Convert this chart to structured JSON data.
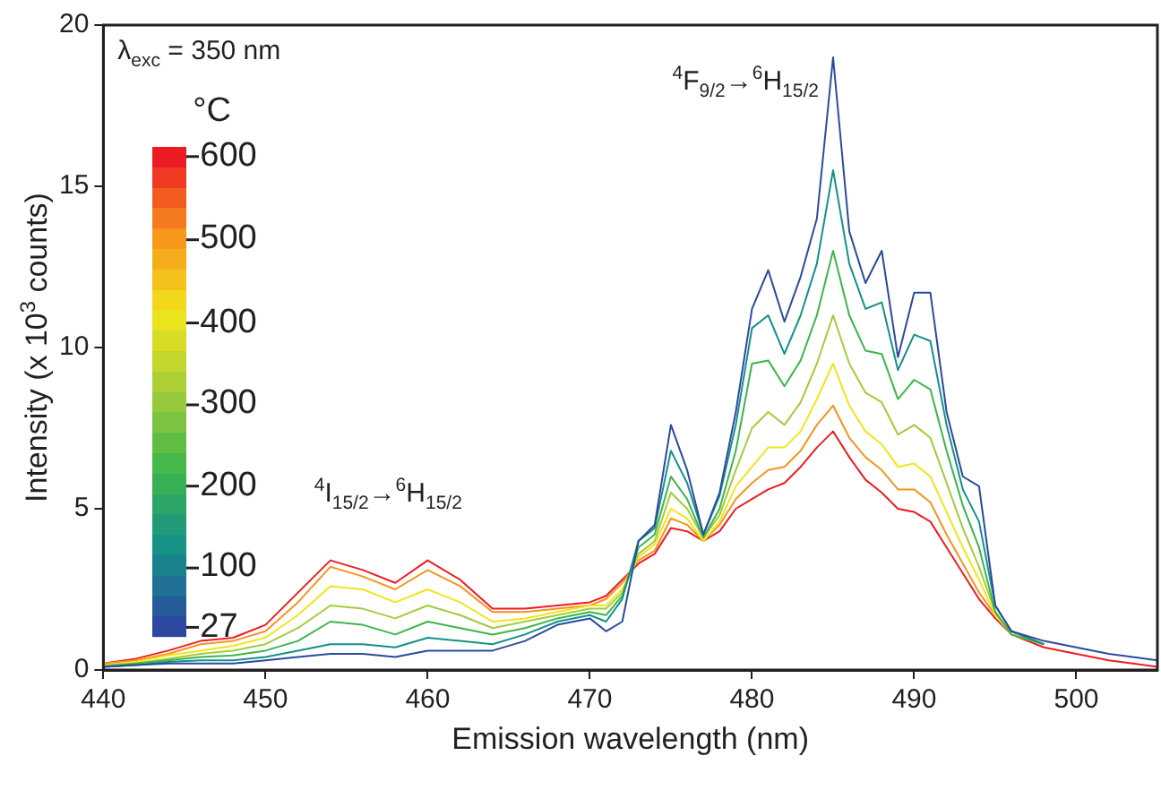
{
  "chart_data": {
    "type": "line",
    "xlabel": "Emission wavelength (nm)",
    "ylabel": "Intensity (x 10$^{3}$ counts)",
    "x": [
      440,
      442,
      444,
      446,
      448,
      450,
      452,
      454,
      456,
      458,
      460,
      462,
      464,
      466,
      468,
      470,
      471,
      472,
      473,
      474,
      475,
      476,
      477,
      478,
      479,
      480,
      481,
      482,
      483,
      484,
      485,
      486,
      487,
      488,
      489,
      490,
      491,
      492,
      493,
      494,
      495,
      496,
      498,
      500,
      502,
      505
    ],
    "series": [
      {
        "color": "#2b4a9f",
        "values": [
          0.1,
          0.15,
          0.2,
          0.2,
          0.2,
          0.3,
          0.4,
          0.5,
          0.5,
          0.4,
          0.6,
          0.6,
          0.6,
          0.9,
          1.4,
          1.6,
          1.2,
          1.5,
          4.0,
          4.5,
          7.6,
          6.2,
          4.2,
          5.5,
          8.0,
          11.2,
          12.4,
          10.8,
          12.2,
          14.0,
          19.0,
          13.6,
          12.0,
          13.0,
          9.7,
          11.7,
          11.7,
          8.0,
          6.0,
          5.7,
          2.0,
          1.2,
          0.9,
          0.7,
          0.5,
          0.3
        ]
      },
      {
        "color": "#15908a",
        "values": [
          0.1,
          0.15,
          0.25,
          0.3,
          0.3,
          0.4,
          0.6,
          0.8,
          0.8,
          0.7,
          1.0,
          0.9,
          0.8,
          1.1,
          1.5,
          1.7,
          1.5,
          2.2,
          4.0,
          4.4,
          6.8,
          5.8,
          4.2,
          5.4,
          7.6,
          10.6,
          11.0,
          9.8,
          11.0,
          12.6,
          15.5,
          12.6,
          11.2,
          11.4,
          9.3,
          10.4,
          10.2,
          7.6,
          5.6,
          4.6,
          2.0,
          1.2,
          0.8,
          null,
          null,
          null
        ]
      },
      {
        "color": "#3db54a",
        "values": [
          0.1,
          0.2,
          0.3,
          0.4,
          0.45,
          0.6,
          0.9,
          1.5,
          1.4,
          1.1,
          1.5,
          1.3,
          1.1,
          1.3,
          1.6,
          1.8,
          1.7,
          2.3,
          3.8,
          4.2,
          6.0,
          5.3,
          4.1,
          5.0,
          6.8,
          9.5,
          9.6,
          8.8,
          9.6,
          11.0,
          13.0,
          11.0,
          9.9,
          9.8,
          8.4,
          9.0,
          8.7,
          6.8,
          5.1,
          3.8,
          1.8,
          1.1,
          0.8,
          null,
          null,
          null
        ]
      },
      {
        "color": "#a3cc3a",
        "values": [
          0.15,
          0.2,
          0.35,
          0.5,
          0.6,
          0.8,
          1.3,
          2.0,
          1.9,
          1.6,
          2.0,
          1.7,
          1.3,
          1.5,
          1.7,
          1.9,
          1.9,
          2.4,
          3.6,
          4.0,
          5.5,
          5.0,
          4.1,
          4.8,
          6.2,
          7.5,
          8.0,
          7.6,
          8.3,
          9.5,
          11.0,
          9.5,
          8.6,
          8.3,
          7.3,
          7.6,
          7.2,
          5.8,
          4.4,
          3.2,
          1.8,
          1.1,
          0.8,
          null,
          null,
          null
        ]
      },
      {
        "color": "#f2e51a",
        "values": [
          0.15,
          0.25,
          0.45,
          0.6,
          0.75,
          1.0,
          1.7,
          2.6,
          2.5,
          2.1,
          2.5,
          2.1,
          1.5,
          1.6,
          1.8,
          2.0,
          2.0,
          2.5,
          3.5,
          3.9,
          5.0,
          4.7,
          4.0,
          4.6,
          5.7,
          6.3,
          6.9,
          6.9,
          7.4,
          8.4,
          9.5,
          8.2,
          7.4,
          7.0,
          6.3,
          6.4,
          6.0,
          4.9,
          3.8,
          2.8,
          1.7,
          1.1,
          0.8,
          null,
          null,
          null
        ]
      },
      {
        "color": "#f7941d",
        "values": [
          0.2,
          0.3,
          0.5,
          0.8,
          0.9,
          1.2,
          2.1,
          3.2,
          2.9,
          2.5,
          3.1,
          2.6,
          1.8,
          1.8,
          1.9,
          2.0,
          2.2,
          2.7,
          3.4,
          3.7,
          4.7,
          4.5,
          4.0,
          4.5,
          5.3,
          5.8,
          6.2,
          6.3,
          6.8,
          7.6,
          8.2,
          7.2,
          6.6,
          6.2,
          5.6,
          5.6,
          5.2,
          4.2,
          3.3,
          2.4,
          1.7,
          1.2,
          0.8,
          null,
          null,
          null
        ]
      },
      {
        "color": "#ed1c24",
        "values": [
          0.2,
          0.35,
          0.6,
          0.9,
          1.0,
          1.4,
          2.4,
          3.4,
          3.1,
          2.7,
          3.4,
          2.8,
          1.9,
          1.9,
          2.0,
          2.1,
          2.3,
          2.8,
          3.3,
          3.6,
          4.4,
          4.3,
          4.0,
          4.3,
          5.0,
          5.3,
          5.6,
          5.8,
          6.3,
          6.9,
          7.4,
          6.6,
          5.9,
          5.5,
          5.0,
          4.9,
          4.6,
          3.8,
          3.0,
          2.2,
          1.6,
          1.1,
          0.7,
          0.5,
          0.3,
          0.1
        ]
      }
    ],
    "xlim": [
      440,
      505
    ],
    "xticks": [
      440,
      450,
      460,
      470,
      480,
      490,
      500
    ],
    "ylim": [
      0,
      20
    ],
    "yticks": [
      0,
      5,
      10,
      15,
      20
    ],
    "annotations": [
      "λ$_{exc}$ = 350 nm",
      "$^{4}$I$_{15/2}$→$^{6}$H$_{15/2}$",
      "°C",
      "600",
      "500",
      "400",
      "300",
      "200",
      "100",
      "27",
      {
        "text": "$^{4}$F$_{9/2}$→$^{6}$H$_{15/2}$",
        "x": 485,
        "y": 19.0
      }
    ],
    "grid": false,
    "legend": false,
    "line_style": "solid",
    "marker": "none"
  }
}
